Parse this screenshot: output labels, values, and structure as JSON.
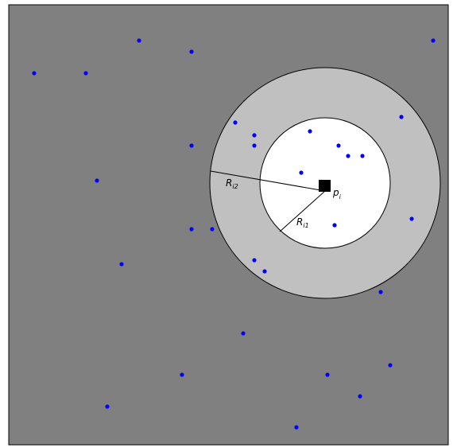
{
  "labels": {
    "outer_radius": {
      "main": "R",
      "sub": "i2"
    },
    "inner_radius": {
      "main": "R",
      "sub": "i1"
    },
    "center_point": {
      "main": "p",
      "sub": "i"
    }
  },
  "colors": {
    "region_fill": "#808080",
    "outer_ring": "#c0c0c0",
    "inner_disk": "#ffffff",
    "dots": "#0000ff",
    "center_marker": "#000000",
    "lines": "#000000"
  },
  "dot_count": 30
}
